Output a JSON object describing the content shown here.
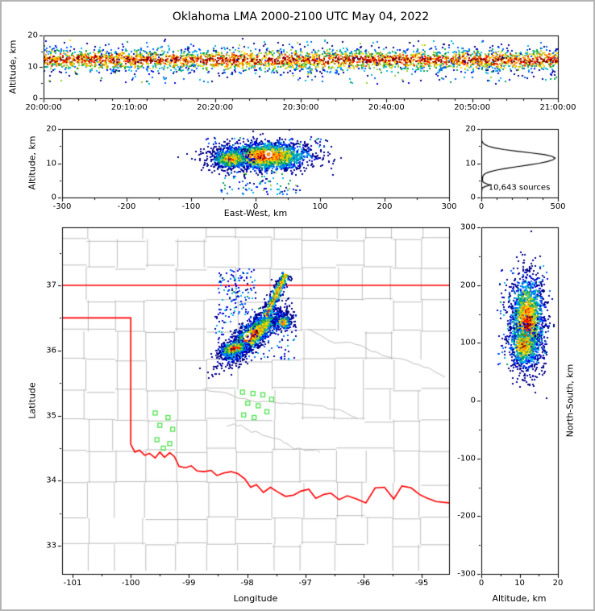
{
  "title": "Oklahoma LMA 2000-2100 UTC May 04, 2022",
  "palette": {
    "background": "#ffffff",
    "frame": "#000000",
    "county_lines": "#bdbdbd",
    "state_border": "#ff0000",
    "station_marker": "#4ce44c",
    "histogram_line": "#000000",
    "density_colors": [
      "#00008b",
      "#0000e0",
      "#0064ff",
      "#00b4dc",
      "#00a050",
      "#96cd2d",
      "#ffd700",
      "#ff8c00",
      "#ff1e00",
      "#8b0000"
    ]
  },
  "chart_data": [
    {
      "id": "time_height",
      "type": "scatter",
      "ylabel": "Altitude, km",
      "xlim": [
        0,
        3600
      ],
      "ylim": [
        0,
        20
      ],
      "xticks": [
        {
          "v": 0,
          "label": "20:00:00"
        },
        {
          "v": 600,
          "label": "20:10:00"
        },
        {
          "v": 1200,
          "label": "20:20:00"
        },
        {
          "v": 1800,
          "label": "20:30:00"
        },
        {
          "v": 2400,
          "label": "20:40:00"
        },
        {
          "v": 3000,
          "label": "20:50:00"
        },
        {
          "v": 3600,
          "label": "21:00:00"
        }
      ],
      "yticks": [
        0,
        10,
        20
      ],
      "minor_dx": 120,
      "minor_dy": 5,
      "clusters": [
        {
          "kind": "band",
          "x1": 0,
          "x2": 3600,
          "cy": 12.2,
          "sy": 1.7,
          "rdiv": 4.5,
          "outlier_frac": 0.1,
          "omin": 4.5,
          "omax": 18.5,
          "n": 3600,
          "jit": 0.55,
          "seed": 11
        }
      ]
    },
    {
      "id": "ew_height",
      "type": "scatter",
      "xlabel": "East-West, km",
      "ylabel": "Altitude, km",
      "xlim": [
        -300,
        300
      ],
      "ylim": [
        0,
        20
      ],
      "xticks": [
        -300,
        -200,
        -100,
        0,
        100,
        200,
        300
      ],
      "yticks": [
        0,
        10,
        20
      ],
      "minor_dx": 50,
      "minor_dy": 5,
      "clusters": [
        {
          "kind": "gauss",
          "cx": 15,
          "cy": 12,
          "sx": 36,
          "sy": 2.0,
          "angle": 0,
          "n": 2400,
          "jit": 0.35,
          "seed": 21
        },
        {
          "kind": "gauss",
          "cx": -38,
          "cy": 11.3,
          "sx": 16,
          "sy": 1.6,
          "angle": 0,
          "n": 480,
          "jit": 0.35,
          "rshift": 0.08,
          "seed": 22
        },
        {
          "kind": "uniform",
          "x1": -55,
          "x2": 70,
          "y1": 0.8,
          "y2": 7.5,
          "n": 90,
          "rmin": 0.5,
          "seed": 23
        },
        {
          "kind": "uniform",
          "x1": -90,
          "x2": 110,
          "y1": 14.5,
          "y2": 17.5,
          "n": 55,
          "rmin": 0.6,
          "seed": 24
        }
      ],
      "marker": {
        "x": 20,
        "y": 12.6
      }
    },
    {
      "id": "alt_histogram",
      "type": "line",
      "xlim": [
        0,
        500
      ],
      "ylim": [
        0,
        20
      ],
      "xticks": [
        0,
        500
      ],
      "yticks": [
        0,
        10,
        20
      ],
      "minor_dx": 100,
      "minor_dy": 5,
      "annotation": "10,643 sources",
      "curve": [
        [
          0,
          0
        ],
        [
          1,
          2
        ],
        [
          2,
          3
        ],
        [
          2.8,
          6
        ],
        [
          3.2,
          25
        ],
        [
          3.6,
          55
        ],
        [
          4,
          34
        ],
        [
          4.4,
          14
        ],
        [
          5,
          7
        ],
        [
          6,
          9
        ],
        [
          6.5,
          14
        ],
        [
          7,
          26
        ],
        [
          7.5,
          55
        ],
        [
          8,
          100
        ],
        [
          8.5,
          160
        ],
        [
          9,
          235
        ],
        [
          9.5,
          310
        ],
        [
          10,
          380
        ],
        [
          10.5,
          432
        ],
        [
          11,
          468
        ],
        [
          11.5,
          482
        ],
        [
          12,
          462
        ],
        [
          12.5,
          415
        ],
        [
          13,
          330
        ],
        [
          13.5,
          232
        ],
        [
          14,
          148
        ],
        [
          14.5,
          84
        ],
        [
          15,
          44
        ],
        [
          15.5,
          20
        ],
        [
          16,
          9
        ],
        [
          16.5,
          4
        ],
        [
          17,
          2
        ],
        [
          18,
          0
        ]
      ]
    },
    {
      "id": "map",
      "type": "scatter",
      "xlabel": "Longitude",
      "ylabel": "Latitude",
      "xlim": [
        -101.18,
        -94.53
      ],
      "ylim": [
        32.57,
        37.89
      ],
      "xticks": [
        -101,
        -100,
        -99,
        -98,
        -97,
        -96,
        -95
      ],
      "yticks": [
        33,
        34,
        35,
        36,
        37
      ],
      "minor_dx": 0.5,
      "minor_dy": 0.5,
      "features": {
        "county_grid": true,
        "rivers": [
          {
            "x1": -98.75,
            "y1": 35.4,
            "x2": -96.1,
            "y2": 34.95,
            "seed": 71
          },
          {
            "x1": -96.95,
            "y1": 36.35,
            "x2": -94.6,
            "y2": 35.8,
            "seed": 72
          },
          {
            "x1": -98.35,
            "y1": 34.82,
            "x2": -96.75,
            "y2": 34.5,
            "seed": 73
          }
        ],
        "state_border": {
          "north_lat": 37.0,
          "panhandle_lat": 36.5,
          "west_lon": -100.0,
          "west_lat_south": 34.56,
          "red_river": [
            [
              -100.0,
              34.56
            ],
            [
              -99.93,
              34.44
            ],
            [
              -99.85,
              34.47
            ],
            [
              -99.76,
              34.39
            ],
            [
              -99.68,
              34.42
            ],
            [
              -99.58,
              34.35
            ],
            [
              -99.5,
              34.44
            ],
            [
              -99.42,
              34.36
            ],
            [
              -99.33,
              34.43
            ],
            [
              -99.25,
              34.37
            ],
            [
              -99.17,
              34.22
            ],
            [
              -99.06,
              34.2
            ],
            [
              -98.96,
              34.23
            ],
            [
              -98.86,
              34.15
            ],
            [
              -98.74,
              34.14
            ],
            [
              -98.62,
              34.16
            ],
            [
              -98.52,
              34.08
            ],
            [
              -98.4,
              34.12
            ],
            [
              -98.28,
              34.14
            ],
            [
              -98.16,
              34.11
            ],
            [
              -98.04,
              34.03
            ],
            [
              -97.94,
              33.9
            ],
            [
              -97.84,
              33.94
            ],
            [
              -97.72,
              33.82
            ],
            [
              -97.6,
              33.9
            ],
            [
              -97.48,
              33.83
            ],
            [
              -97.34,
              33.76
            ],
            [
              -97.2,
              33.78
            ],
            [
              -97.08,
              33.84
            ],
            [
              -96.94,
              33.87
            ],
            [
              -96.82,
              33.73
            ],
            [
              -96.68,
              33.79
            ],
            [
              -96.56,
              33.81
            ],
            [
              -96.42,
              33.71
            ],
            [
              -96.28,
              33.77
            ],
            [
              -96.12,
              33.72
            ],
            [
              -95.96,
              33.66
            ],
            [
              -95.8,
              33.89
            ],
            [
              -95.64,
              33.9
            ],
            [
              -95.48,
              33.72
            ],
            [
              -95.34,
              33.92
            ],
            [
              -95.18,
              33.89
            ],
            [
              -95.04,
              33.79
            ],
            [
              -94.9,
              33.73
            ],
            [
              -94.75,
              33.68
            ],
            [
              -94.53,
              33.66
            ]
          ]
        },
        "stations": [
          [
            -98.08,
            35.36
          ],
          [
            -97.9,
            35.34
          ],
          [
            -97.73,
            35.32
          ],
          [
            -97.99,
            35.19
          ],
          [
            -97.81,
            35.15
          ],
          [
            -98.06,
            35.01
          ],
          [
            -97.88,
            34.97
          ],
          [
            -97.66,
            35.06
          ],
          [
            -97.58,
            35.25
          ],
          [
            -99.58,
            35.04
          ],
          [
            -99.36,
            34.97
          ],
          [
            -99.5,
            34.85
          ],
          [
            -99.28,
            34.79
          ],
          [
            -99.55,
            34.63
          ],
          [
            -99.33,
            34.57
          ],
          [
            -99.44,
            34.5
          ]
        ]
      },
      "clusters": [
        {
          "kind": "gauss",
          "cx": -97.92,
          "cy": 36.22,
          "sx": 0.3,
          "sy": 0.085,
          "angle": 38,
          "n": 2100,
          "jit": 0.35,
          "seed": 41
        },
        {
          "kind": "gauss",
          "cx": -98.22,
          "cy": 36.03,
          "sx": 0.13,
          "sy": 0.055,
          "angle": 12,
          "n": 650,
          "jit": 0.35,
          "seed": 42
        },
        {
          "kind": "streak",
          "x1": -97.68,
          "y1": 36.52,
          "x2": -97.33,
          "y2": 37.17,
          "width": 0.05,
          "n": 420,
          "rshift": 0.18,
          "jit": 0.3,
          "seed": 43
        },
        {
          "kind": "gauss",
          "cx": -97.38,
          "cy": 36.43,
          "sx": 0.08,
          "sy": 0.06,
          "angle": 0,
          "n": 200,
          "jit": 0.4,
          "rshift": 0.1,
          "seed": 44
        },
        {
          "kind": "uniform",
          "x1": -98.5,
          "x2": -97.85,
          "y1": 36.55,
          "y2": 37.25,
          "n": 120,
          "rmin": 0.72,
          "seed": 45
        },
        {
          "kind": "uniform",
          "x1": -98.55,
          "x2": -97.15,
          "y1": 35.85,
          "y2": 36.65,
          "n": 160,
          "rmin": 0.7,
          "seed": 46
        }
      ],
      "marker": {
        "x": -98.0,
        "y": 36.22
      }
    },
    {
      "id": "ns_height",
      "type": "scatter",
      "xlabel": "Altitude, km",
      "ylabel_right": "North-South, km",
      "xlim": [
        0,
        20
      ],
      "ylim": [
        -300,
        300
      ],
      "xticks": [
        0,
        10,
        20
      ],
      "yticks": [
        300,
        200,
        100,
        0,
        -100,
        -200,
        -300
      ],
      "minor_dx": 5,
      "minor_dy": 50,
      "clusters": [
        {
          "kind": "gauss",
          "cx": 12,
          "cy": 135,
          "sx": 2.2,
          "sy": 40,
          "angle": 0,
          "n": 1900,
          "jit": 0.35,
          "seed": 51
        },
        {
          "kind": "gauss",
          "cx": 11,
          "cy": 95,
          "sx": 2.0,
          "sy": 18,
          "angle": 0,
          "n": 420,
          "jit": 0.35,
          "rshift": 0.05,
          "seed": 52
        },
        {
          "kind": "uniform",
          "x1": 4,
          "x2": 18,
          "y1": 55,
          "y2": 235,
          "n": 120,
          "rmin": 0.65,
          "seed": 53
        }
      ]
    }
  ]
}
